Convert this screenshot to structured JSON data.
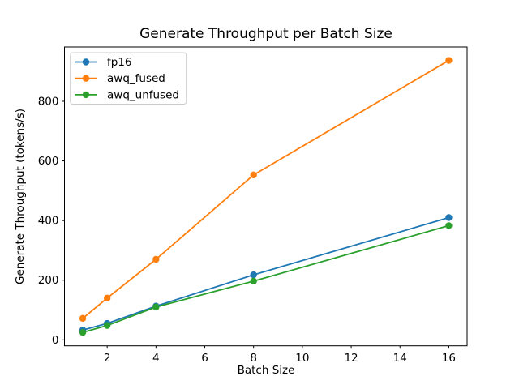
{
  "chart_data": {
    "type": "line",
    "title": "Generate Throughput per Batch Size",
    "xlabel": "Batch Size",
    "ylabel": "Generate Throughput (tokens/s)",
    "x": [
      1,
      2,
      4,
      8,
      16
    ],
    "series": [
      {
        "name": "fp16",
        "color": "#1f77b4",
        "values": [
          33,
          55,
          113,
          218,
          410
        ]
      },
      {
        "name": "awq_fused",
        "color": "#ff7f0e",
        "values": [
          72,
          140,
          270,
          553,
          937
        ]
      },
      {
        "name": "awq_unfused",
        "color": "#2ca02c",
        "values": [
          25,
          48,
          110,
          197,
          383
        ]
      }
    ],
    "xlim": [
      0.25,
      16.75
    ],
    "ylim": [
      -20,
      982
    ],
    "xticks": [
      2,
      4,
      6,
      8,
      10,
      12,
      14,
      16
    ],
    "yticks": [
      0,
      200,
      400,
      600,
      800
    ],
    "grid": false,
    "marker": "o",
    "legend_position": "upper left",
    "colors": {
      "spine": "#000000",
      "legend_border": "#cccccc",
      "legend_background": "#ffffff"
    }
  }
}
